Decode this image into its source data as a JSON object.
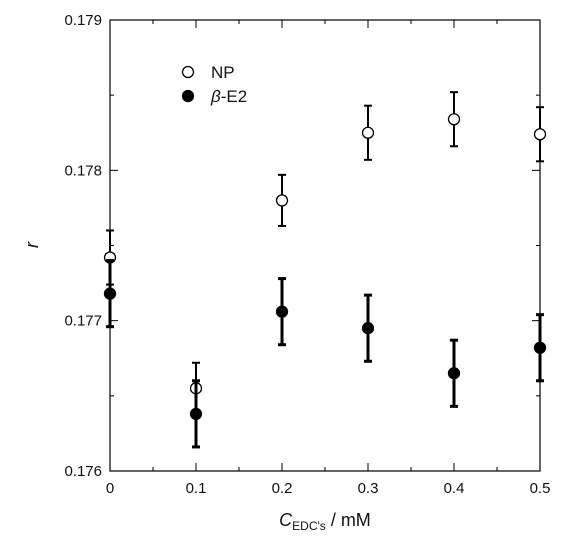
{
  "chart_data": {
    "type": "scatter",
    "title": "",
    "xlabel": {
      "main": "C",
      "subscript": "EDC's",
      "unit": " / mM"
    },
    "ylabel": "r",
    "xlim": [
      0,
      0.5
    ],
    "ylim": [
      0.176,
      0.179
    ],
    "x_ticks": [
      "0",
      "0.1",
      "0.2",
      "0.3",
      "0.4",
      "0.5"
    ],
    "y_ticks": [
      "0.176",
      "0.177",
      "0.178",
      "0.179"
    ],
    "grid": false,
    "legend_position": "top-left",
    "series": [
      {
        "name": "NP",
        "marker": "open-circle",
        "color": "#000000",
        "x": [
          0,
          0.1,
          0.2,
          0.3,
          0.4,
          0.5
        ],
        "y": [
          0.17742,
          0.17655,
          0.1778,
          0.17825,
          0.17834,
          0.17824
        ],
        "err": [
          0.00018,
          0.00017,
          0.00017,
          0.00018,
          0.00018,
          0.00018
        ]
      },
      {
        "name": "β-E2",
        "name_prefix": "β",
        "name_suffix": "-E2",
        "marker": "filled-circle",
        "color": "#000000",
        "x": [
          0,
          0.1,
          0.2,
          0.3,
          0.4,
          0.5
        ],
        "y": [
          0.17718,
          0.17638,
          0.17706,
          0.17695,
          0.17665,
          0.17682
        ],
        "err": [
          0.00022,
          0.00022,
          0.00022,
          0.00022,
          0.00022,
          0.00022
        ]
      }
    ]
  }
}
